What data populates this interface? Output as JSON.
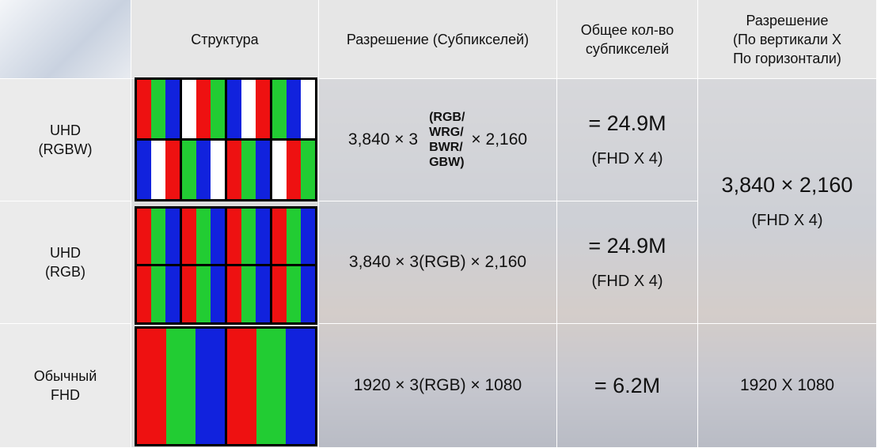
{
  "header": [
    [
      "Структура"
    ],
    [
      "Разрешение (Субпикселей)"
    ],
    [
      "Общее кол-во",
      "субпикселей"
    ],
    [
      "Разрешение",
      "(По вертикали X",
      "По горизонтали)"
    ]
  ],
  "rows": [
    {
      "label": [
        "UHD",
        "(RGBW)"
      ],
      "resolution": "3,840 × 3",
      "resolution_note": [
        "(RGB/",
        "WRG/",
        "BWR/",
        "GBW)"
      ],
      "resolution_suffix": "× 2,160",
      "total": "= 24.9M",
      "total_note": "(FHD X 4)"
    },
    {
      "label": [
        "UHD",
        "(RGB)"
      ],
      "resolution": "3,840 × 3(RGB) × 2,160",
      "total": "= 24.9M",
      "total_note": "(FHD X 4)"
    },
    {
      "label": [
        "Обычный",
        "FHD"
      ],
      "resolution": "1920 × 3(RGB) × 1080",
      "total": "= 6.2M",
      "final": "1920 X 1080"
    }
  ],
  "merged_final": {
    "value": "3,840 × 2,160",
    "note": "(FHD X 4)"
  }
}
